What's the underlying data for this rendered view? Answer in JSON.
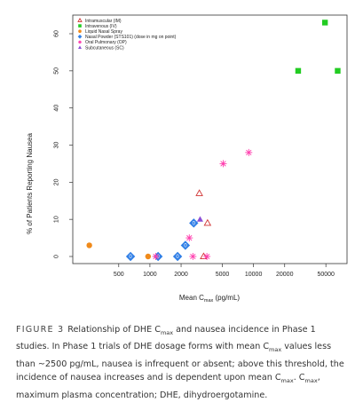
{
  "chart_data": {
    "type": "scatter",
    "xlabel_prefix": "Mean C",
    "xlabel_sub": "max",
    "xlabel_suffix": " (pg/mL)",
    "ylabel": "% of Patients Reporting Nausea",
    "x_scale": "log",
    "xlim": [
      180,
      80000
    ],
    "ylim": [
      0,
      65
    ],
    "x_ticks": [
      500,
      1000,
      2000,
      5000,
      10000,
      20000,
      50000
    ],
    "x_tick_labels": [
      "500",
      "1000",
      "2000",
      "5000",
      "10000",
      "20000",
      "50000"
    ],
    "y_ticks": [
      0,
      10,
      20,
      30,
      40,
      50,
      60
    ],
    "y_tick_labels": [
      "0",
      "10",
      "20",
      "30",
      "40",
      "50",
      "60"
    ],
    "legend_position": "top-left",
    "series": [
      {
        "name": "Intramuscular (IM)",
        "marker": "triangle-open",
        "color": "#d03030",
        "points": [
          [
            3000,
            17
          ],
          [
            3600,
            9
          ],
          [
            3300,
            0
          ]
        ]
      },
      {
        "name": "Intravenous (IV)",
        "marker": "square",
        "color": "#22cc22",
        "points": [
          [
            27000,
            50
          ],
          [
            49000,
            63
          ],
          [
            65000,
            50
          ]
        ]
      },
      {
        "name": "Liquid Nasal Spray",
        "marker": "circle",
        "color": "#f08a1a",
        "points": [
          [
            260,
            3
          ],
          [
            960,
            0
          ]
        ]
      },
      {
        "name": "Nasal Powder (STS101) (dose in mg on point)",
        "marker": "diamond",
        "color": "#2f7ee6",
        "labels": "0",
        "points": [
          [
            650,
            0
          ],
          [
            1200,
            0
          ],
          [
            1850,
            0
          ],
          [
            2200,
            3
          ],
          [
            2650,
            9
          ]
        ]
      },
      {
        "name": "Oral Pulmonary (OP)",
        "marker": "asterisk",
        "color": "#ff3fae",
        "points": [
          [
            1140,
            0
          ],
          [
            2400,
            5
          ],
          [
            2600,
            0
          ],
          [
            3550,
            0
          ],
          [
            5100,
            25
          ],
          [
            9000,
            28
          ]
        ]
      },
      {
        "name": "Subcutaneous (SC)",
        "marker": "triangle",
        "color": "#8c4fd6",
        "points": [
          [
            3050,
            10
          ]
        ]
      }
    ]
  },
  "caption": {
    "label": "FIGURE 3",
    "line1": "Relationship of DHE C",
    "line1_sub": "max",
    "line1_rest": " and nausea incidence in Phase 1 studies. In Phase 1 trials of DHE dosage forms with mean C",
    "line2_sub": "max",
    "line2_rest": " values less than ~2500 pg/mL, nausea is infrequent or absent; above this threshold, the incidence of nausea increases and is dependent upon mean C",
    "line3_sub": "max",
    "line3_mid": ". C",
    "line3_sub2": "max",
    "line3_rest": ", maximum plasma concentration; DHE, dihydroergotamine."
  }
}
